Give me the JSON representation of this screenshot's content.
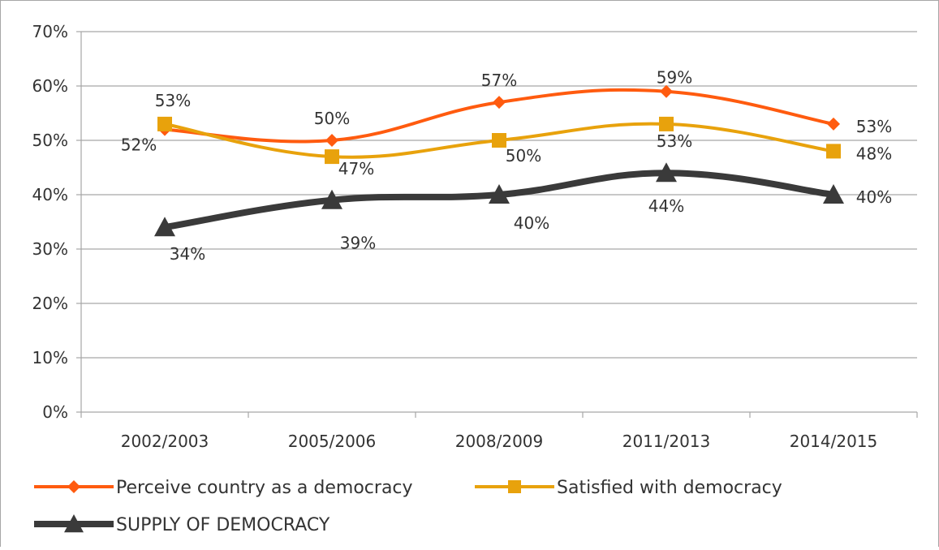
{
  "chart_data": {
    "type": "line",
    "categories": [
      "2002/2003",
      "2005/2006",
      "2008/2009",
      "2011/2013",
      "2014/2015"
    ],
    "series": [
      {
        "name": "Perceive country as a democracy",
        "values": [
          52,
          50,
          57,
          59,
          53
        ],
        "labels": [
          "52%",
          "50%",
          "57%",
          "59%",
          "53%"
        ],
        "color": "#ff5b0f",
        "marker": "diamond"
      },
      {
        "name": "Satisfied with democracy",
        "values": [
          53,
          47,
          50,
          53,
          48
        ],
        "labels": [
          "53%",
          "47%",
          "50%",
          "53%",
          "48%"
        ],
        "color": "#e8a20c",
        "marker": "square"
      },
      {
        "name": "SUPPLY OF DEMOCRACY",
        "values": [
          34,
          39,
          40,
          44,
          40
        ],
        "labels": [
          "34%",
          "39%",
          "40%",
          "44%",
          "40%"
        ],
        "color": "#3a3a3a",
        "marker": "triangle"
      }
    ],
    "ylim": [
      0,
      70
    ],
    "yticks": [
      "0%",
      "10%",
      "20%",
      "30%",
      "40%",
      "50%",
      "60%",
      "70%"
    ],
    "grid": true,
    "legend_position": "bottom"
  }
}
